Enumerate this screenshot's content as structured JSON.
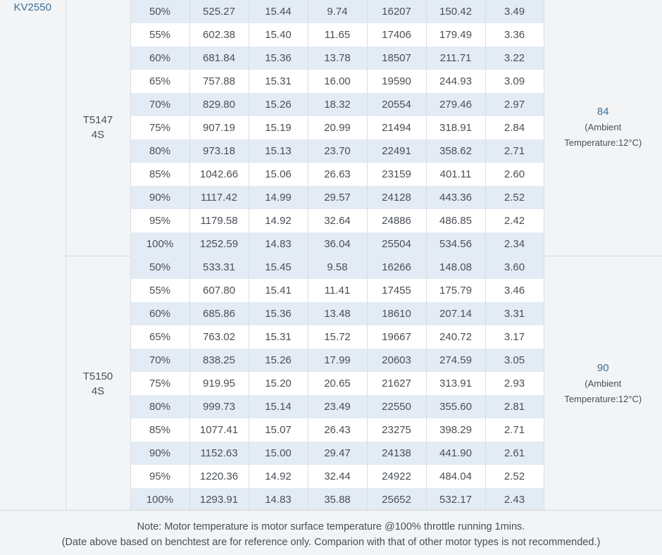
{
  "motor": "KV2550",
  "groups": [
    {
      "prop_line1": "T5147",
      "prop_line2": "4S",
      "temp_value": "84",
      "temp_note_line1": "(Ambient",
      "temp_note_line2": "Temperature:12°C)",
      "rows": [
        [
          "50%",
          "525.27",
          "15.44",
          "9.74",
          "16207",
          "150.42",
          "3.49"
        ],
        [
          "55%",
          "602.38",
          "15.40",
          "11.65",
          "17406",
          "179.49",
          "3.36"
        ],
        [
          "60%",
          "681.84",
          "15.36",
          "13.78",
          "18507",
          "211.71",
          "3.22"
        ],
        [
          "65%",
          "757.88",
          "15.31",
          "16.00",
          "19590",
          "244.93",
          "3.09"
        ],
        [
          "70%",
          "829.80",
          "15.26",
          "18.32",
          "20554",
          "279.46",
          "2.97"
        ],
        [
          "75%",
          "907.19",
          "15.19",
          "20.99",
          "21494",
          "318.91",
          "2.84"
        ],
        [
          "80%",
          "973.18",
          "15.13",
          "23.70",
          "22491",
          "358.62",
          "2.71"
        ],
        [
          "85%",
          "1042.66",
          "15.06",
          "26.63",
          "23159",
          "401.11",
          "2.60"
        ],
        [
          "90%",
          "1117.42",
          "14.99",
          "29.57",
          "24128",
          "443.36",
          "2.52"
        ],
        [
          "95%",
          "1179.58",
          "14.92",
          "32.64",
          "24886",
          "486.85",
          "2.42"
        ],
        [
          "100%",
          "1252.59",
          "14.83",
          "36.04",
          "25504",
          "534.56",
          "2.34"
        ]
      ]
    },
    {
      "prop_line1": "T5150",
      "prop_line2": "4S",
      "temp_value": "90",
      "temp_note_line1": "(Ambient",
      "temp_note_line2": "Temperature:12°C)",
      "rows": [
        [
          "50%",
          "533.31",
          "15.45",
          "9.58",
          "16266",
          "148.08",
          "3.60"
        ],
        [
          "55%",
          "607.80",
          "15.41",
          "11.41",
          "17455",
          "175.79",
          "3.46"
        ],
        [
          "60%",
          "685.86",
          "15.36",
          "13.48",
          "18610",
          "207.14",
          "3.31"
        ],
        [
          "65%",
          "763.02",
          "15.31",
          "15.72",
          "19667",
          "240.72",
          "3.17"
        ],
        [
          "70%",
          "838.25",
          "15.26",
          "17.99",
          "20603",
          "274.59",
          "3.05"
        ],
        [
          "75%",
          "919.95",
          "15.20",
          "20.65",
          "21627",
          "313.91",
          "2.93"
        ],
        [
          "80%",
          "999.73",
          "15.14",
          "23.49",
          "22550",
          "355.60",
          "2.81"
        ],
        [
          "85%",
          "1077.41",
          "15.07",
          "26.43",
          "23275",
          "398.29",
          "2.71"
        ],
        [
          "90%",
          "1152.63",
          "15.00",
          "29.47",
          "24138",
          "441.90",
          "2.61"
        ],
        [
          "95%",
          "1220.36",
          "14.92",
          "32.44",
          "24922",
          "484.04",
          "2.52"
        ],
        [
          "100%",
          "1293.91",
          "14.83",
          "35.88",
          "25652",
          "532.17",
          "2.43"
        ]
      ]
    }
  ],
  "note": {
    "line1": "Note: Motor temperature is motor surface temperature @100% throttle running 1mins.",
    "line2": "(Date above based on benchtest are for reference only. Comparion with that of other motor types is not recommended.)"
  },
  "colors": {
    "row_stripe": "#e3ecf4",
    "row_plain": "#ffffff",
    "accent_text": "#3b6f98",
    "background": "#f2f4f6"
  }
}
